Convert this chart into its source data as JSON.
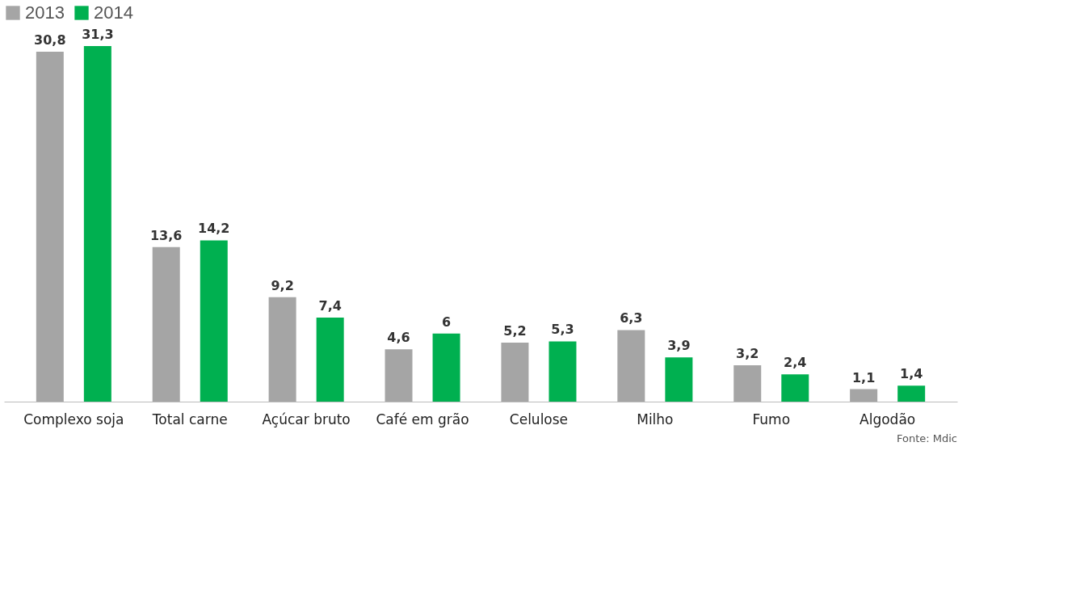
{
  "chart_data": {
    "type": "bar",
    "categories": [
      "Complexo soja",
      "Total carne",
      "Açúcar bruto",
      "Café em grão",
      "Celulose",
      "Milho",
      "Fumo",
      "Algodão"
    ],
    "series": [
      {
        "name": "2013",
        "color": "#a5a5a5",
        "values": [
          30.8,
          13.6,
          9.2,
          4.6,
          5.2,
          6.3,
          3.2,
          1.1
        ],
        "value_labels": [
          "30,8",
          "13,6",
          "9,2",
          "4,6",
          "5,2",
          "6,3",
          "3,2",
          "1,1"
        ]
      },
      {
        "name": "2014",
        "color": "#00b050",
        "values": [
          31.3,
          14.2,
          7.4,
          6,
          5.3,
          3.9,
          2.4,
          1.4
        ],
        "value_labels": [
          "31,3",
          "14,2",
          "7,4",
          "6",
          "5,3",
          "3,9",
          "2,4",
          "1,4"
        ]
      }
    ],
    "legend": "top left",
    "grid": false,
    "tick_labels": "x",
    "annotations": [
      "Fonte: Mdic"
    ]
  }
}
